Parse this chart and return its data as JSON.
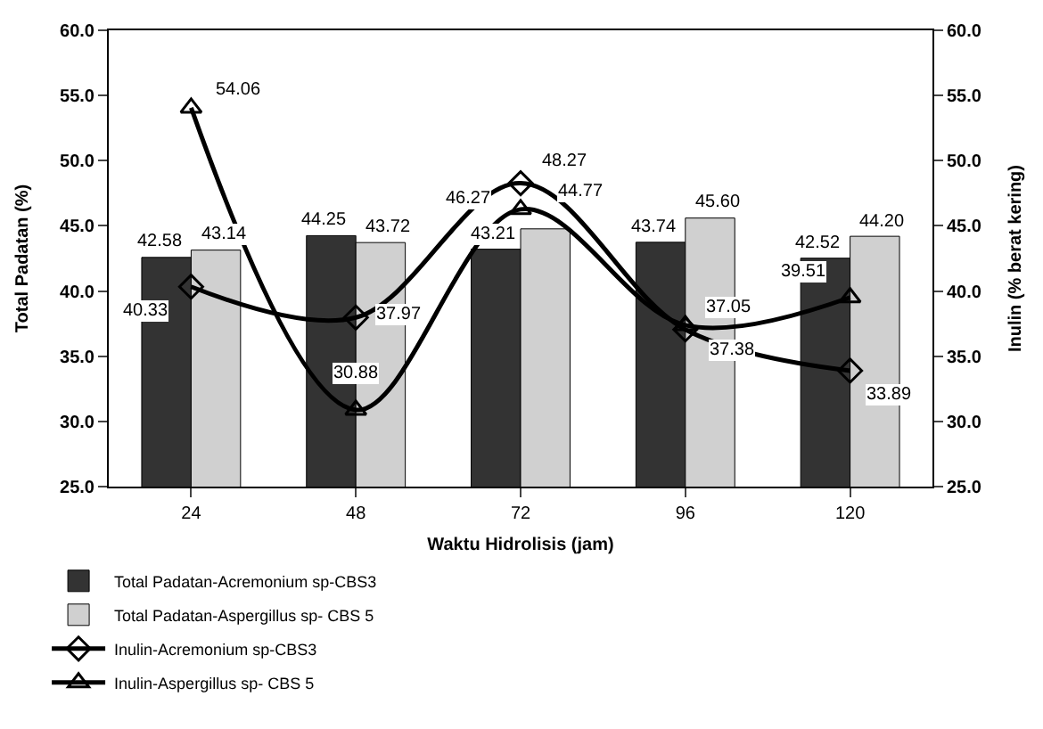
{
  "chart_data": {
    "type": "bar",
    "xlabel": "Waktu Hidrolisis (jam)",
    "ylabel": "Total Padatan (%)",
    "y2label": "Inulin (% berat kering)",
    "categories": [
      "24",
      "48",
      "72",
      "96",
      "120"
    ],
    "series": [
      {
        "name": "Total Padatan-Acremonium sp-CBS3",
        "color": "#333333",
        "values": [
          42.58,
          44.25,
          43.21,
          43.74,
          42.52
        ],
        "value_labels": [
          "42.58",
          "44.25",
          "43.21",
          "43.74",
          "42.52"
        ]
      },
      {
        "name": "Total Padatan-Aspergillus sp- CBS 5",
        "color": "#d0d0d0",
        "values": [
          43.14,
          43.72,
          44.77,
          45.6,
          44.2
        ],
        "value_labels": [
          "43.14",
          "43.72",
          "44.77",
          "45.60",
          "44.20"
        ]
      },
      {
        "name": "Inulin-Acremonium sp-CBS3",
        "type": "line",
        "axis": "y2",
        "marker": "diamond",
        "color": "#000000",
        "values": [
          40.33,
          37.97,
          48.27,
          37.05,
          33.89
        ],
        "value_labels": [
          "40.33",
          "37.97",
          "48.27",
          "37.05",
          "33.89"
        ]
      },
      {
        "name": "Inulin-Aspergillus sp- CBS 5",
        "type": "line",
        "axis": "y2",
        "marker": "triangle",
        "color": "#000000",
        "values": [
          54.06,
          30.88,
          46.27,
          37.38,
          39.51
        ],
        "value_labels": [
          "54.06",
          "30.88",
          "46.27",
          "37.38",
          "39.51"
        ]
      }
    ],
    "ylim": [
      25,
      60
    ],
    "yticks": [
      {
        "value": 25,
        "label": "25.0"
      },
      {
        "value": 30,
        "label": "30.0"
      },
      {
        "value": 35,
        "label": "35.0"
      },
      {
        "value": 40,
        "label": "40.0"
      },
      {
        "value": 45,
        "label": "45.0"
      },
      {
        "value": 50,
        "label": "50.0"
      },
      {
        "value": 55,
        "label": "55.0"
      },
      {
        "value": 60,
        "label": "60.0"
      }
    ],
    "y2lim": [
      25,
      60
    ],
    "y2ticks": [
      {
        "value": 25,
        "label": "25.0"
      },
      {
        "value": 30,
        "label": "30.0"
      },
      {
        "value": 35,
        "label": "35.0"
      },
      {
        "value": 40,
        "label": "40.0"
      },
      {
        "value": 45,
        "label": "45.0"
      },
      {
        "value": 50,
        "label": "50.0"
      },
      {
        "value": 55,
        "label": "55.0"
      },
      {
        "value": 60,
        "label": "60.0"
      }
    ],
    "legend": "bottom left"
  }
}
